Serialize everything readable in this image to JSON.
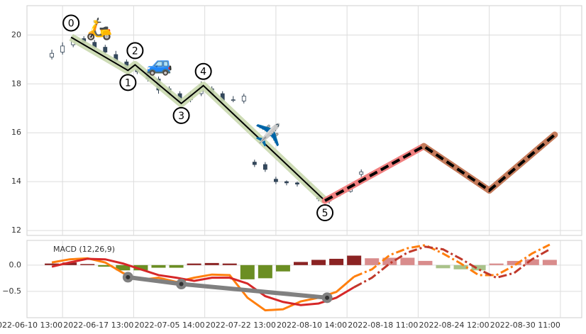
{
  "chart_data": [
    {
      "type": "candlestick",
      "ylim": [
        11.8,
        21.2
      ],
      "yticks": [
        12,
        14,
        16,
        18,
        20
      ],
      "xlim": [
        -0.5,
        7.3
      ],
      "xticks": [
        0,
        1,
        2,
        3,
        4,
        5,
        6,
        7
      ],
      "grid": true,
      "up_color": "#ffffff",
      "down_color": "#34495e",
      "edge_color": "#2c3e50",
      "candles": {
        "x": [
          -0.15,
          0,
          0.15,
          0.3,
          0.45,
          0.6,
          0.75,
          0.9,
          1.05,
          1.2,
          1.35,
          1.5,
          1.65,
          1.8,
          1.95,
          2.1,
          2.25,
          2.4,
          2.55,
          2.7,
          2.85,
          3.0,
          3.15,
          3.3,
          3.45,
          3.6,
          3.75,
          3.9,
          4.05,
          4.2
        ],
        "open": [
          19.1,
          19.3,
          19.6,
          19.85,
          19.7,
          19.5,
          19.2,
          18.9,
          18.6,
          18.5,
          18.2,
          17.8,
          17.6,
          17.35,
          17.6,
          17.8,
          17.6,
          17.35,
          17.3,
          14.8,
          14.7,
          14.1,
          14.0,
          13.95,
          13.9,
          13.4,
          13.3,
          13.5,
          13.6,
          14.3
        ],
        "high": [
          19.4,
          19.7,
          20.0,
          19.95,
          19.8,
          19.6,
          19.35,
          19.0,
          18.7,
          18.6,
          18.3,
          17.9,
          17.7,
          17.7,
          18.1,
          17.9,
          17.7,
          17.5,
          17.6,
          14.9,
          14.8,
          14.2,
          14.05,
          14.0,
          14.05,
          13.5,
          13.4,
          13.7,
          13.8,
          14.5
        ],
        "low": [
          19.0,
          19.2,
          19.5,
          19.6,
          19.4,
          19.2,
          18.85,
          18.5,
          18.4,
          18.1,
          17.6,
          17.5,
          17.2,
          17.25,
          17.5,
          17.5,
          17.2,
          17.25,
          17.2,
          14.6,
          14.4,
          13.9,
          13.85,
          13.8,
          13.8,
          13.2,
          13.1,
          13.4,
          13.55,
          14.2
        ],
        "close": [
          19.25,
          19.55,
          19.85,
          19.7,
          19.5,
          19.3,
          18.95,
          18.6,
          18.5,
          18.2,
          17.75,
          17.6,
          17.3,
          17.55,
          17.95,
          17.6,
          17.3,
          17.35,
          17.5,
          14.7,
          14.5,
          14.0,
          13.95,
          13.9,
          13.95,
          13.3,
          13.2,
          13.6,
          13.7,
          14.4
        ]
      },
      "waves": {
        "x": [
          0.12,
          0.92,
          1.02,
          1.67,
          1.98,
          3.69
        ],
        "y": [
          19.91,
          18.55,
          18.78,
          17.2,
          17.93,
          13.22
        ],
        "labels": [
          "0",
          "1",
          "2",
          "3",
          "4",
          "5"
        ],
        "color": "#000000",
        "halo_color": "#c9d8ae"
      },
      "projection": {
        "x": [
          3.69,
          5.08,
          6.0,
          6.92
        ],
        "y": [
          13.22,
          15.45,
          13.64,
          15.92
        ],
        "colors": [
          "#f08080",
          "#c47a5a",
          "#c47a5a"
        ]
      },
      "annotations": [
        "🛵",
        "🚙",
        "✈️"
      ]
    },
    {
      "type": "macd",
      "title": "MACD (12,26,9)",
      "ylim": [
        -1.0,
        0.47
      ],
      "yticks": [
        {
          "value": -0.5,
          "label": "−0.5"
        },
        {
          "value": 0,
          "label": "0.0"
        }
      ],
      "xlim": [
        -0.5,
        7.3
      ],
      "xticks": [
        {
          "value": 0,
          "label": "2022-06-10 13:00"
        },
        {
          "value": 1,
          "label": "2022-06-17 13:00"
        },
        {
          "value": 2,
          "label": "2022-07-05 14:00"
        },
        {
          "value": 3,
          "label": "2022-07-22 13:00"
        },
        {
          "value": 4,
          "label": "2022-08-10 14:00"
        },
        {
          "value": 5,
          "label": "2022-08-18 11:00"
        },
        {
          "value": 6,
          "label": "2022-08-24 12:00"
        },
        {
          "value": 7,
          "label": "2022-08-30 11:00"
        }
      ],
      "grid": true,
      "x": [
        -0.15,
        0.1,
        0.35,
        0.6,
        0.85,
        1.1,
        1.35,
        1.6,
        1.85,
        2.1,
        2.35,
        2.6,
        2.85,
        3.1,
        3.35,
        3.6,
        3.85,
        4.1,
        4.35,
        4.6,
        4.85,
        5.1,
        5.35,
        5.6,
        5.85,
        6.1,
        6.35,
        6.6,
        6.85
      ],
      "histogram": {
        "values": [
          0.03,
          0.05,
          0.02,
          -0.03,
          -0.1,
          -0.1,
          -0.05,
          -0.05,
          0.03,
          0.04,
          0.03,
          -0.27,
          -0.25,
          -0.12,
          0.06,
          0.1,
          0.12,
          0.18,
          0.13,
          0.14,
          0.14,
          0.08,
          -0.06,
          -0.08,
          -0.1,
          0.03,
          0.08,
          0.11,
          0.1
        ],
        "colors": [
          "#8b2323",
          "#8b2323",
          "#8b2323",
          "#6b8e23",
          "#6b8e23",
          "#6b8e23",
          "#6b8e23",
          "#6b8e23",
          "#8b2323",
          "#8b2323",
          "#8b2323",
          "#6b8e23",
          "#6b8e23",
          "#6b8e23",
          "#8b2323",
          "#8b2323",
          "#8b2323",
          "#8b2323",
          "#d98c8c",
          "#d98c8c",
          "#d98c8c",
          "#d98c8c",
          "#a9c28a",
          "#a9c28a",
          "#a9c28a",
          "#d98c8c",
          "#d98c8c",
          "#d98c8c",
          "#d98c8c"
        ]
      },
      "series": [
        {
          "color": "#ff7f0e",
          "style": "solid",
          "values": [
            0.05,
            0.11,
            0.13,
            0.05,
            -0.15,
            -0.28,
            -0.24,
            -0.32,
            -0.24,
            -0.18,
            -0.19,
            -0.62,
            -0.86,
            -0.84,
            -0.69,
            -0.62,
            -0.51,
            -0.22,
            null,
            null,
            null,
            null,
            null,
            null,
            null,
            null,
            null,
            null,
            null
          ]
        },
        {
          "color": "#d62728",
          "style": "solid",
          "values": [
            -0.03,
            0.05,
            0.12,
            0.11,
            0.03,
            -0.08,
            -0.19,
            -0.24,
            -0.3,
            -0.24,
            -0.24,
            -0.35,
            -0.59,
            -0.7,
            -0.76,
            -0.73,
            -0.62,
            -0.42,
            null,
            null,
            null,
            null,
            null,
            null,
            null,
            null,
            null,
            null,
            null
          ]
        },
        {
          "color": "#ff7f0e",
          "style": "dashdot",
          "values": [
            null,
            null,
            null,
            null,
            null,
            null,
            null,
            null,
            null,
            null,
            null,
            null,
            null,
            null,
            null,
            null,
            null,
            -0.22,
            -0.08,
            0.19,
            0.32,
            0.38,
            0.22,
            0.03,
            -0.19,
            -0.19,
            -0.01,
            0.22,
            0.39
          ]
        },
        {
          "color": "#c0392b",
          "style": "dashdot",
          "values": [
            null,
            null,
            null,
            null,
            null,
            null,
            null,
            null,
            null,
            null,
            null,
            null,
            null,
            null,
            null,
            null,
            null,
            -0.42,
            -0.24,
            0.03,
            0.24,
            0.35,
            0.3,
            0.12,
            -0.08,
            -0.24,
            -0.15,
            0.11,
            0.3
          ]
        }
      ],
      "trend": {
        "x": [
          0.92,
          1.67,
          3.72
        ],
        "y": [
          -0.23,
          -0.36,
          -0.62
        ],
        "color": "#808080",
        "marker_color": "#333333"
      }
    }
  ]
}
